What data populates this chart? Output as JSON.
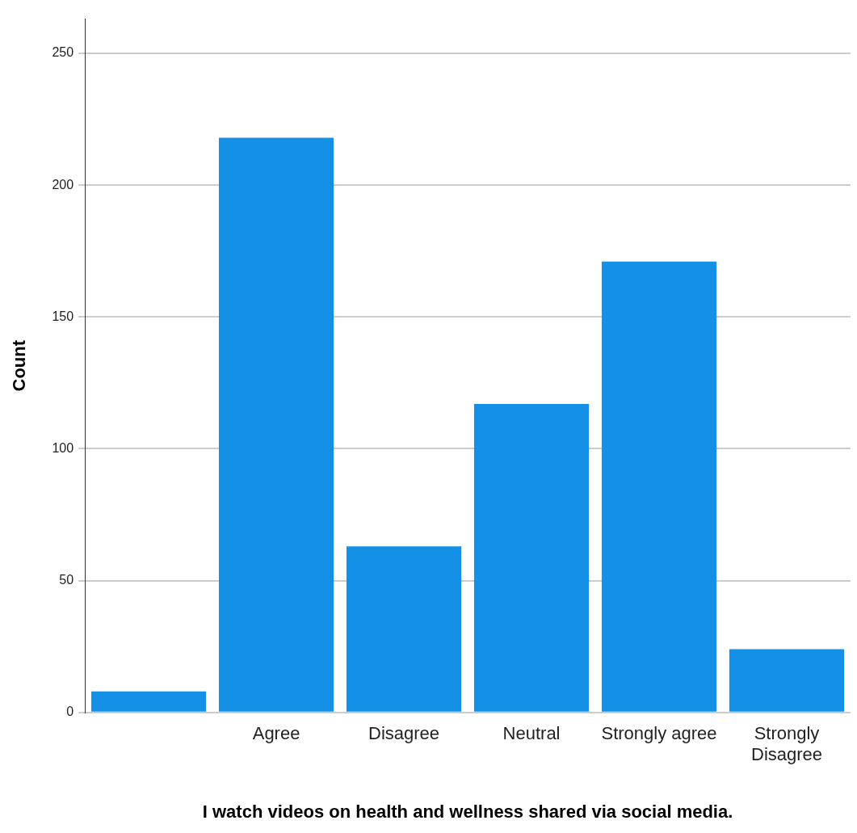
{
  "chart_data": {
    "type": "bar",
    "xlabel": "I watch videos on health and wellness shared via social media.",
    "ylabel": "Count",
    "categories": [
      null,
      "Agree",
      "Disagree",
      "Neutral",
      "Strongly agree",
      "Strongly Disagree"
    ],
    "values": [
      8,
      218,
      63,
      117,
      171,
      24
    ],
    "color": "#1490e6",
    "ylim": [
      0,
      263
    ],
    "yticks": [
      0,
      50,
      100,
      150,
      200,
      250
    ],
    "grid": "y",
    "legend": false
  }
}
